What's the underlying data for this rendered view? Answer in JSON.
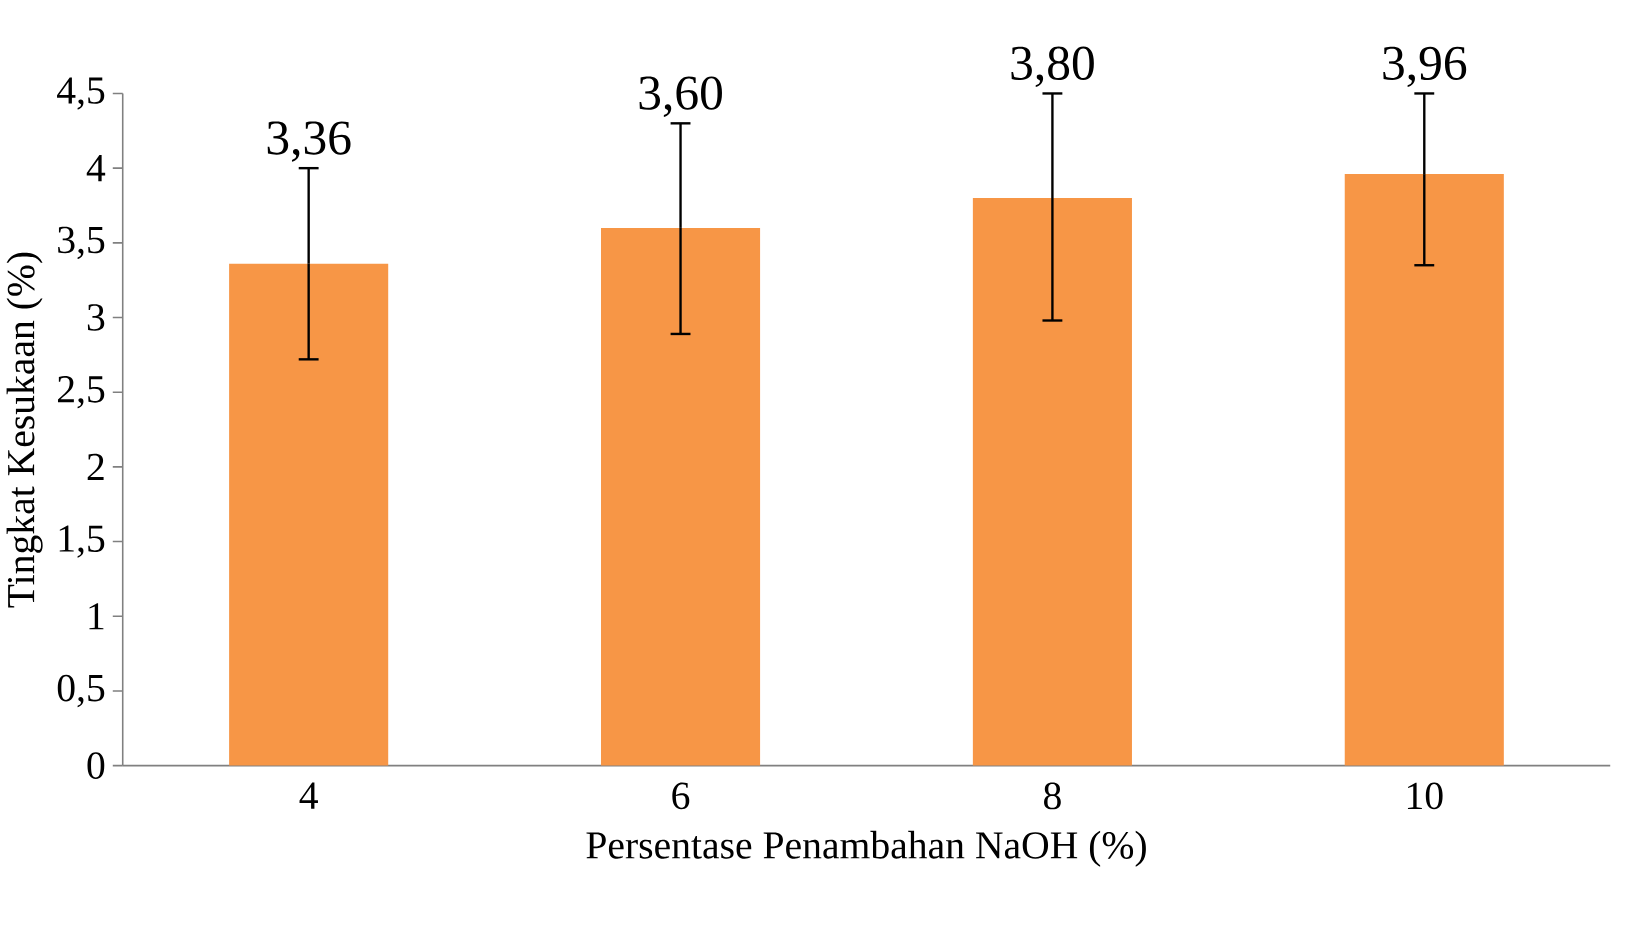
{
  "chart_data": {
    "type": "bar",
    "xlabel": "Persentase Penambahan NaOH (%)",
    "ylabel": "Tingkat Kesukaan (%)",
    "categories": [
      "4",
      "6",
      "8",
      "10"
    ],
    "values": [
      3.36,
      3.6,
      3.8,
      3.96
    ],
    "errors": [
      [
        2.72,
        4.0
      ],
      [
        2.89,
        4.3
      ],
      [
        2.98,
        4.5
      ],
      [
        3.35,
        4.5
      ]
    ],
    "value_labels": [
      "3,36",
      "3,60",
      "3,80",
      "3,96"
    ],
    "color": "#f79646",
    "ylim": [
      0,
      4.5
    ],
    "yticks": [
      0,
      {
        "value": 0.5,
        "label": "0,5"
      },
      1,
      {
        "value": 1.5,
        "label": "1,5"
      },
      2,
      {
        "value": 2.5,
        "label": "2,5"
      },
      3,
      {
        "value": 3.5,
        "label": "3,5"
      },
      4,
      {
        "value": 4.5,
        "label": "4,5"
      }
    ]
  }
}
